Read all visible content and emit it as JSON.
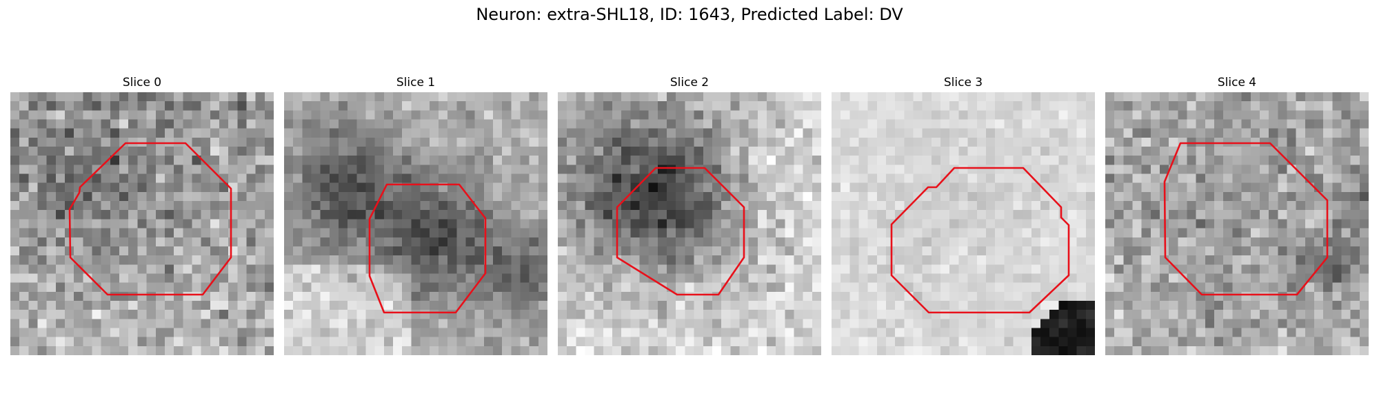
{
  "figure": {
    "title": "Neuron: extra-SHL18, ID: 1643, Predicted Label: DV",
    "contour_color": "#e8101a",
    "image_grid_size": 29,
    "panels": [
      {
        "title": "Slice 0",
        "brightness": "medium-gray noisy"
      },
      {
        "title": "Slice 1",
        "brightness": "darker blob, light lower-left"
      },
      {
        "title": "Slice 2",
        "brightness": "dark upper-left, light lower"
      },
      {
        "title": "Slice 3",
        "brightness": "very light, dark bottom-right corner"
      },
      {
        "title": "Slice 4",
        "brightness": "medium-gray noisy"
      }
    ]
  }
}
